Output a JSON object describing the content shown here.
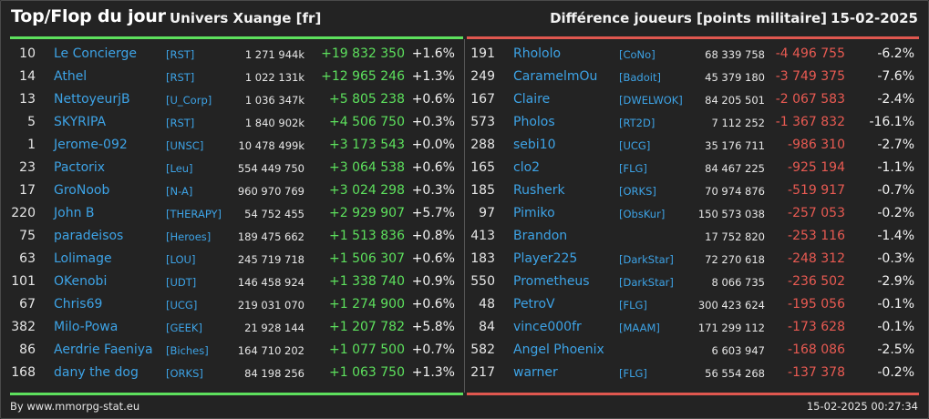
{
  "header": {
    "title": "Top/Flop du jour",
    "universe": "Univers Xuange [fr]",
    "difference_label": "Différence joueurs [points militaire]",
    "date": "15-02-2025"
  },
  "colors": {
    "background": "#232323",
    "positive": "#5de05d",
    "negative": "#e85a52",
    "link": "#3da3e6"
  },
  "top": [
    {
      "rank": "10",
      "name": "Le Concierge",
      "alliance": "[RST]",
      "points": "1 271 944k",
      "delta": "+19 832 350",
      "pct": "+1.6%"
    },
    {
      "rank": "14",
      "name": "Athel",
      "alliance": "[RST]",
      "points": "1 022 131k",
      "delta": "+12 965 246",
      "pct": "+1.3%"
    },
    {
      "rank": "13",
      "name": "NettoyeurjB",
      "alliance": "[U_Corp]",
      "points": "1 036 347k",
      "delta": "+5 805 238",
      "pct": "+0.6%"
    },
    {
      "rank": "5",
      "name": "SKYRIPA",
      "alliance": "[RST]",
      "points": "1 840 902k",
      "delta": "+4 506 750",
      "pct": "+0.3%"
    },
    {
      "rank": "1",
      "name": "Jerome-092",
      "alliance": "[UNSC]",
      "points": "10 478 499k",
      "delta": "+3 173 543",
      "pct": "+0.0%"
    },
    {
      "rank": "23",
      "name": "Pactorix",
      "alliance": "[Leu]",
      "points": "554 449 750",
      "delta": "+3 064 538",
      "pct": "+0.6%"
    },
    {
      "rank": "17",
      "name": "GroNoob",
      "alliance": "[N-A]",
      "points": "960 970 769",
      "delta": "+3 024 298",
      "pct": "+0.3%"
    },
    {
      "rank": "220",
      "name": "John B",
      "alliance": "[THERAPY]",
      "points": "54 752 455",
      "delta": "+2 929 907",
      "pct": "+5.7%"
    },
    {
      "rank": "75",
      "name": "paradeisos",
      "alliance": "[Heroes]",
      "points": "189 475 662",
      "delta": "+1 513 836",
      "pct": "+0.8%"
    },
    {
      "rank": "63",
      "name": "Lolimage",
      "alliance": "[LOU]",
      "points": "245 719 718",
      "delta": "+1 506 307",
      "pct": "+0.6%"
    },
    {
      "rank": "101",
      "name": "OKenobi",
      "alliance": "[UDT]",
      "points": "146 458 924",
      "delta": "+1 338 740",
      "pct": "+0.9%"
    },
    {
      "rank": "67",
      "name": "Chris69",
      "alliance": "[UCG]",
      "points": "219 031 070",
      "delta": "+1 274 900",
      "pct": "+0.6%"
    },
    {
      "rank": "382",
      "name": "Milo-Powa",
      "alliance": "[GEEK]",
      "points": "21 928 144",
      "delta": "+1 207 782",
      "pct": "+5.8%"
    },
    {
      "rank": "86",
      "name": "Aerdrie Faeniya",
      "alliance": "[Biches]",
      "points": "164 710 202",
      "delta": "+1 077 500",
      "pct": "+0.7%"
    },
    {
      "rank": "168",
      "name": "dany the dog",
      "alliance": "[ORKS]",
      "points": "84 198 256",
      "delta": "+1 063 750",
      "pct": "+1.3%"
    }
  ],
  "flop": [
    {
      "rank": "191",
      "name": "Rhololo",
      "alliance": "[CoNo]",
      "points": "68 339 758",
      "delta": "-4 496 755",
      "pct": "-6.2%"
    },
    {
      "rank": "249",
      "name": "CaramelmOu",
      "alliance": "[Badoit]",
      "points": "45 379 180",
      "delta": "-3 749 375",
      "pct": "-7.6%"
    },
    {
      "rank": "167",
      "name": "Claire",
      "alliance": "[DWELWOK]",
      "points": "84 205 501",
      "delta": "-2 067 583",
      "pct": "-2.4%"
    },
    {
      "rank": "573",
      "name": "Pholos",
      "alliance": "[RT2D]",
      "points": "7 112 252",
      "delta": "-1 367 832",
      "pct": "-16.1%"
    },
    {
      "rank": "288",
      "name": "sebi10",
      "alliance": "[UCG]",
      "points": "35 176 711",
      "delta": "-986 310",
      "pct": "-2.7%"
    },
    {
      "rank": "165",
      "name": "clo2",
      "alliance": "[FLG]",
      "points": "84 467 225",
      "delta": "-925 194",
      "pct": "-1.1%"
    },
    {
      "rank": "185",
      "name": "Rusherk",
      "alliance": "[ORKS]",
      "points": "70 974 876",
      "delta": "-519 917",
      "pct": "-0.7%"
    },
    {
      "rank": "97",
      "name": "Pimiko",
      "alliance": "[ObsKur]",
      "points": "150 573 038",
      "delta": "-257 053",
      "pct": "-0.2%"
    },
    {
      "rank": "413",
      "name": "Brandon",
      "alliance": "",
      "points": "17 752 820",
      "delta": "-253 116",
      "pct": "-1.4%"
    },
    {
      "rank": "183",
      "name": "Player225",
      "alliance": "[DarkStar]",
      "points": "72 270 618",
      "delta": "-248 312",
      "pct": "-0.3%"
    },
    {
      "rank": "550",
      "name": "Prometheus",
      "alliance": "[DarkStar]",
      "points": "8 066 735",
      "delta": "-236 502",
      "pct": "-2.9%"
    },
    {
      "rank": "48",
      "name": "PetroV",
      "alliance": "[FLG]",
      "points": "300 423 624",
      "delta": "-195 056",
      "pct": "-0.1%"
    },
    {
      "rank": "84",
      "name": "vince000fr",
      "alliance": "[MAAM]",
      "points": "171 299 112",
      "delta": "-173 628",
      "pct": "-0.1%"
    },
    {
      "rank": "582",
      "name": "Angel Phoenix",
      "alliance": "",
      "points": "6 603 947",
      "delta": "-168 086",
      "pct": "-2.5%"
    },
    {
      "rank": "217",
      "name": "warner",
      "alliance": "[FLG]",
      "points": "56 554 268",
      "delta": "-137 378",
      "pct": "-0.2%"
    }
  ],
  "footer": {
    "source": "By www.mmorpg-stat.eu",
    "timestamp": "15-02-2025 00:27:34"
  }
}
